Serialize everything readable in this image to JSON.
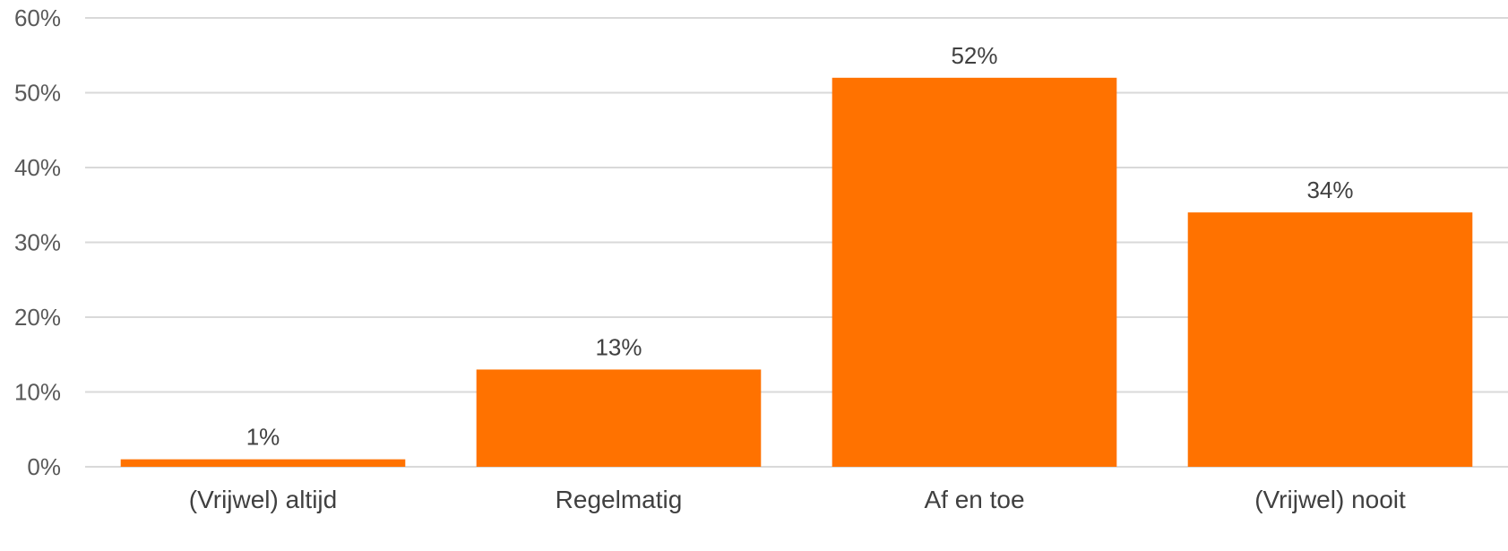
{
  "chart_data": {
    "type": "bar",
    "categories": [
      "(Vrijwel) altijd",
      "Regelmatig",
      "Af en toe",
      "(Vrijwel) nooit"
    ],
    "values": [
      1,
      13,
      52,
      34
    ],
    "value_labels": [
      "1%",
      "13%",
      "52%",
      "34%"
    ],
    "y_ticks": [
      0,
      10,
      20,
      30,
      40,
      50,
      60
    ],
    "y_tick_labels": [
      "0%",
      "10%",
      "20%",
      "30%",
      "40%",
      "50%",
      "60%"
    ],
    "ylim": [
      0,
      60
    ],
    "grid": true,
    "legend": "none",
    "bar_color": "#ff7200"
  }
}
